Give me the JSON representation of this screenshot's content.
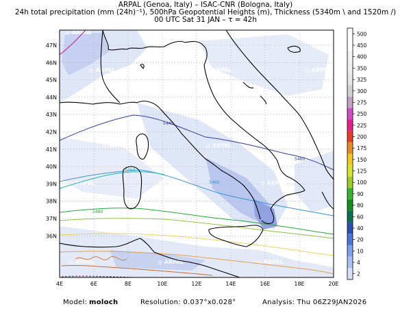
{
  "header": {
    "line1": "ARPAL (Genoa, Italy)  –  ISAC-CNR (Bologna, Italy)",
    "line2": "24h total precipitation (mm (24h)⁻¹), 500hPa Geopotential Heights (m), Thickness (5340m \\ and 1520m /)",
    "line3": "00 UTC Sat 31 JAN  –  τ = 42h"
  },
  "map": {
    "lat_labels": [
      "47N",
      "46N",
      "45N",
      "44N",
      "43N",
      "42N",
      "41N",
      "40N",
      "39N",
      "38N",
      "37N",
      "36N"
    ],
    "lon_labels": [
      "4E",
      "6E",
      "8E",
      "10E",
      "12E",
      "14E",
      "16E",
      "18E",
      "20E"
    ],
    "watermark": "ARPAL",
    "contour_labels": [
      "5460",
      "5480",
      "5460",
      "5460",
      "5440"
    ],
    "colors": {
      "precip_light": "#dfe6f7",
      "precip_mid": "#b9c6ee",
      "precip_strong": "#8fa1e0",
      "coast": "#000000",
      "height_5400": "#2b3f9c",
      "height_5440": "#3a90d6",
      "height_5460": "#19b4b0",
      "height_5480": "#22a83a",
      "height_5500": "#8cc63f",
      "height_5520": "#f0d060",
      "height_5540": "#e0a050",
      "height_5560": "#d97a3c",
      "height_low": "#c2188a"
    }
  },
  "colorbar": {
    "labels": [
      "500",
      "450",
      "400",
      "350",
      "325",
      "300",
      "275",
      "250",
      "225",
      "200",
      "175",
      "150",
      "125",
      "100",
      "90",
      "80",
      "60",
      "40",
      "20",
      "10",
      "4",
      "2"
    ],
    "colors": [
      "#ffffff",
      "#ffffff",
      "#f4f4f4",
      "#eeeeee",
      "#e6e6e6",
      "#d2d2d2",
      "#c4a0c4",
      "#d24bc8",
      "#e81e8c",
      "#e63c28",
      "#e88c28",
      "#f0c828",
      "#d4e628",
      "#9ccd28",
      "#38b432",
      "#128c1e",
      "#0a6e50",
      "#2a4fb0",
      "#4b78d8",
      "#7ea2ec",
      "#a9c0f5",
      "#d6e0fa"
    ]
  },
  "footer": {
    "model_label": "Model:",
    "model_value": "moloch",
    "resolution": "Resolution: 0.037°x0.028°",
    "analysis": "Analysis: Thu 06Z29JAN2026"
  }
}
